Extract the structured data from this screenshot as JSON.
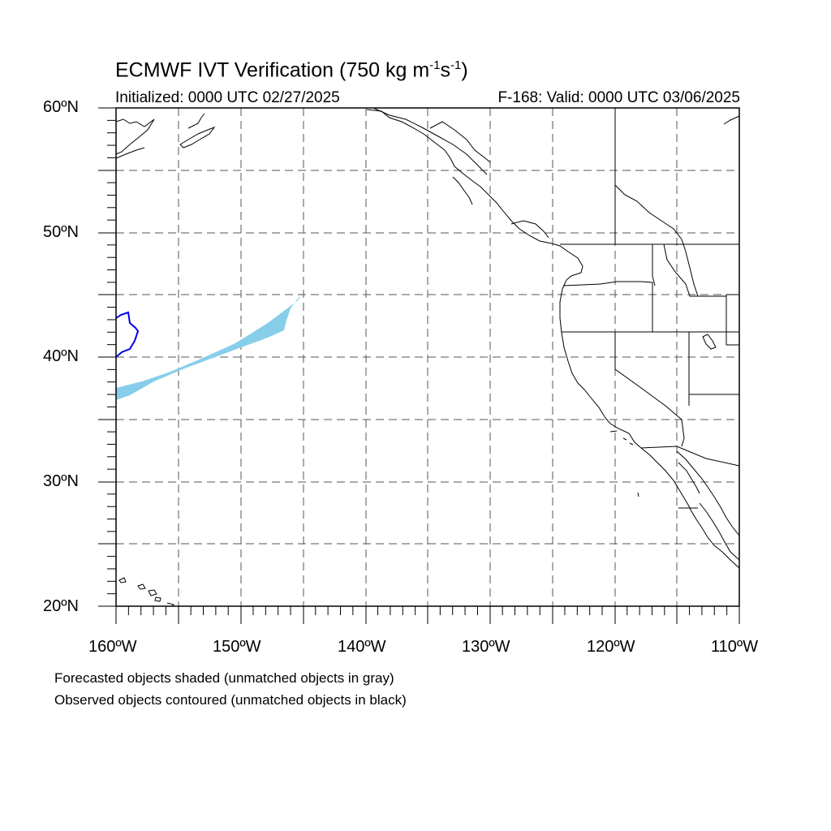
{
  "title": {
    "main": "ECMWF IVT Verification (750 kg m",
    "sup1": "-1",
    "mid": "s",
    "sup2": "-1",
    "end": ")"
  },
  "subtitle": {
    "initialized": "Initialized: 0000 UTC 02/27/2025",
    "valid": "F-168: Valid: 0000 UTC 03/06/2025"
  },
  "lat_labels": [
    "60ºN",
    "50ºN",
    "40ºN",
    "30ºN",
    "20ºN"
  ],
  "lon_labels": [
    "160ºW",
    "150ºW",
    "140ºW",
    "130ºW",
    "120ºW",
    "110ºW"
  ],
  "notes": {
    "line1": "Forecasted objects shaded (unmatched objects in gray)",
    "line2": "Observed objects contoured (unmatched objects in black)"
  },
  "colors": {
    "forecast_fill": "#87ceea",
    "observed_contour": "#0000ee",
    "coastline": "#000000",
    "grid": "#555555"
  }
}
